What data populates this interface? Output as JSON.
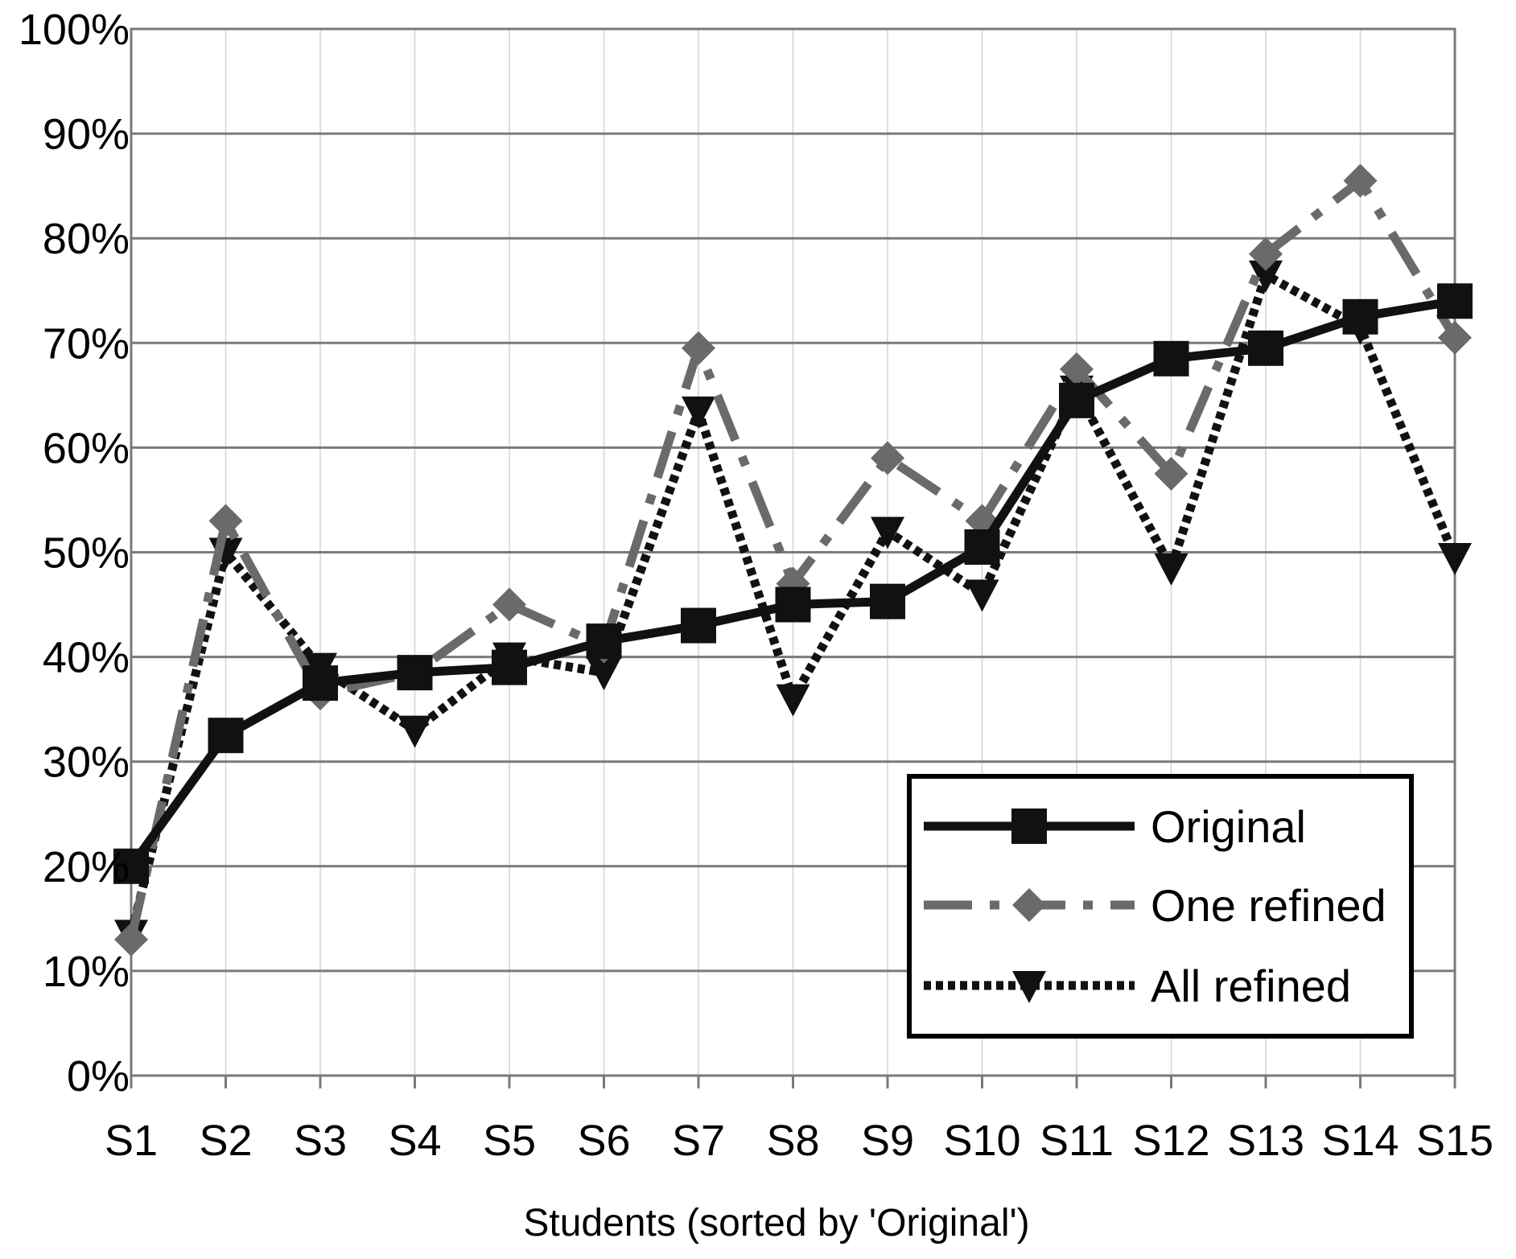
{
  "chart_data": {
    "type": "line",
    "title": "",
    "xlabel": "Students (sorted by 'Original')",
    "ylabel": "",
    "ylim": [
      0,
      100
    ],
    "yticks": [
      "0%",
      "10%",
      "20%",
      "30%",
      "40%",
      "50%",
      "60%",
      "70%",
      "80%",
      "90%",
      "100%"
    ],
    "grid": "horizontal major, vertical minor",
    "legend_position": "bottom-right",
    "categories": [
      "S1",
      "S2",
      "S3",
      "S4",
      "S5",
      "S6",
      "S7",
      "S8",
      "S9",
      "S10",
      "S11",
      "S12",
      "S13",
      "S14",
      "S15"
    ],
    "series": [
      {
        "name": "Original",
        "color": "#111111",
        "line": "solid",
        "marker": "square",
        "values": [
          20,
          32.5,
          37.5,
          38.5,
          39,
          41.5,
          43,
          45,
          45.3,
          50.5,
          64.5,
          68.5,
          69.5,
          72.5,
          74
        ]
      },
      {
        "name": "One refined",
        "color": "#6a6a6a",
        "line": "dash-dot",
        "marker": "diamond",
        "values": [
          13,
          53,
          36.5,
          38.5,
          45,
          41,
          69.5,
          47,
          59,
          53,
          67.5,
          57.5,
          78.5,
          85.5,
          70.5
        ]
      },
      {
        "name": "All refined",
        "color": "#111111",
        "line": "dotted",
        "marker": "triangle-down",
        "values": [
          13.5,
          50,
          39,
          33,
          40,
          38.5,
          63.5,
          36,
          52,
          46,
          65.5,
          48.5,
          76.5,
          71.5,
          49.5
        ]
      }
    ]
  }
}
